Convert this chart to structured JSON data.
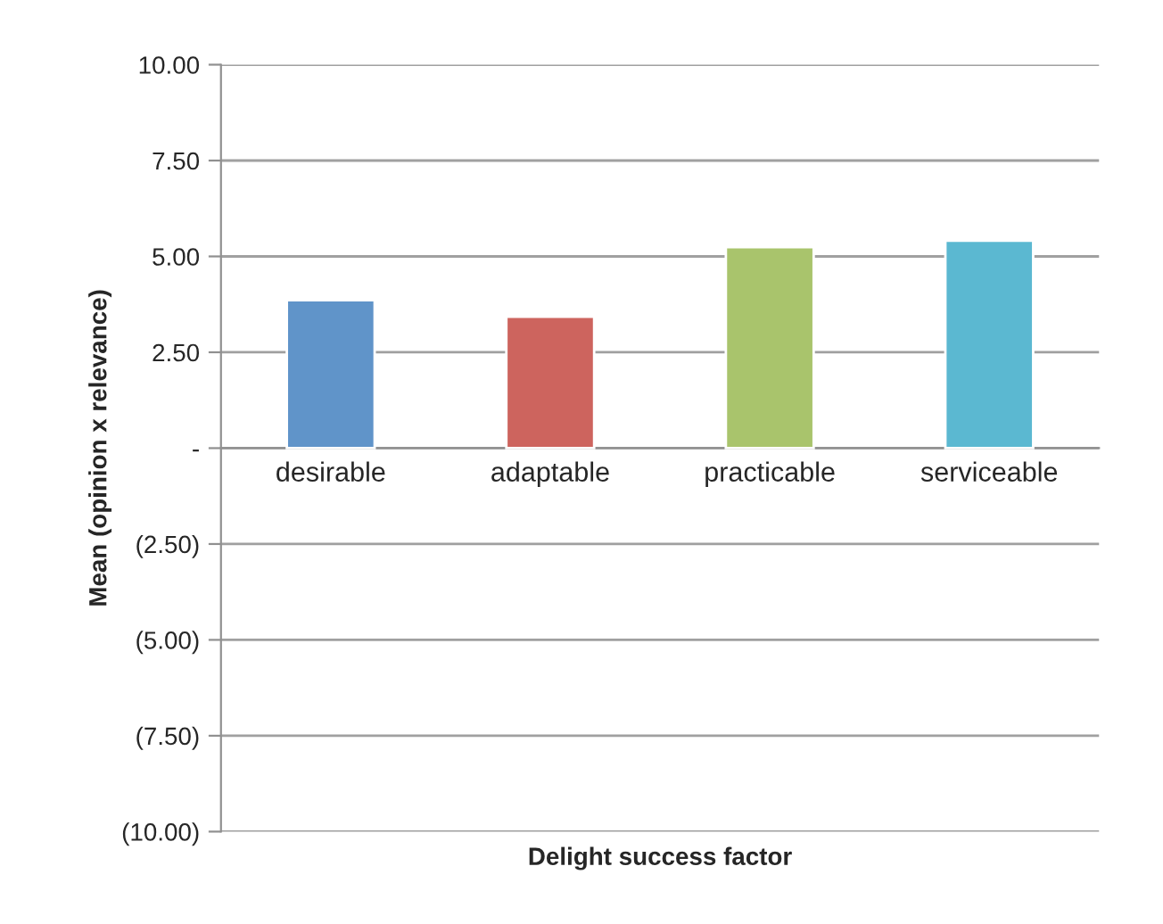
{
  "chart_data": {
    "type": "bar",
    "xlabel": "Delight success factor",
    "ylabel": "Mean (opinion x relevance)",
    "categories": [
      "desirable",
      "adaptable",
      "practicable",
      "serviceable"
    ],
    "values": [
      3.86,
      3.43,
      5.24,
      5.41
    ],
    "colors": [
      "#6094c9",
      "#cd645e",
      "#a9c46c",
      "#5bb8d1"
    ],
    "ylim": [
      -10,
      10
    ],
    "yticks": [
      {
        "value": -10,
        "label": "(10.00)"
      },
      {
        "value": -7.5,
        "label": "(7.50)"
      },
      {
        "value": -5,
        "label": "(5.00)"
      },
      {
        "value": -2.5,
        "label": "(2.50)"
      },
      {
        "value": 0,
        "label": "-"
      },
      {
        "value": 2.5,
        "label": "2.50"
      },
      {
        "value": 5,
        "label": "5.00"
      },
      {
        "value": 7.5,
        "label": "7.50"
      },
      {
        "value": 10,
        "label": "10.00"
      }
    ],
    "grid": "y",
    "legend": false
  }
}
